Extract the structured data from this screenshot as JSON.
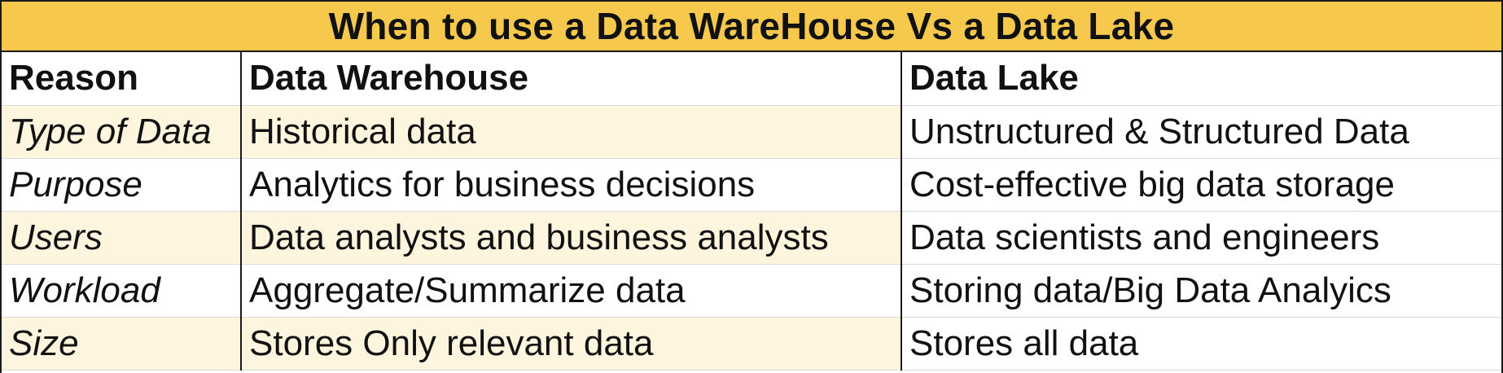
{
  "title": "When to use a Data WareHouse Vs a Data Lake",
  "headers": {
    "reason": "Reason",
    "warehouse": "Data Warehouse",
    "lake": "Data Lake"
  },
  "rows": [
    {
      "reason": "Type of Data",
      "warehouse": "Historical data",
      "lake": "Unstructured & Structured Data"
    },
    {
      "reason": "Purpose",
      "warehouse": "Analytics for business decisions",
      "lake": "Cost-effective big data storage"
    },
    {
      "reason": "Users",
      "warehouse": "Data analysts and business analysts",
      "lake": "Data scientists and engineers"
    },
    {
      "reason": "Workload",
      "warehouse": "Aggregate/Summarize data",
      "lake": "Storing data/Big Data Analyics"
    },
    {
      "reason": "Size",
      "warehouse": "Stores Only relevant data",
      "lake": "Stores all data"
    }
  ],
  "colors": {
    "title_background": "#f6c94c",
    "shaded_row": "#fdf5de"
  }
}
